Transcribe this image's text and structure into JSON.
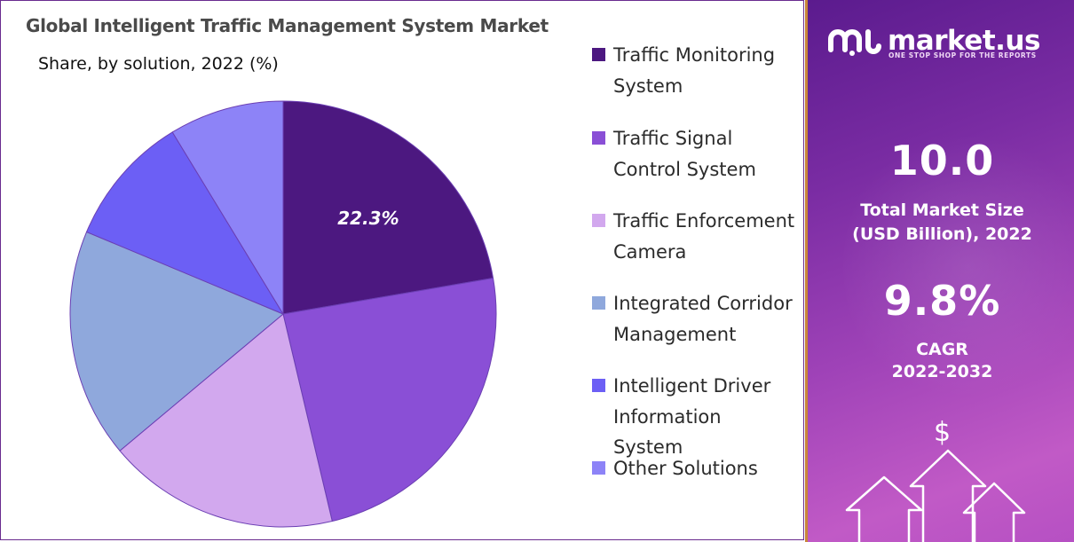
{
  "chart_data": {
    "type": "pie",
    "title": "Global Intelligent Traffic Management System Market",
    "subtitle": "Share, by solution, 2022 (%)",
    "series": [
      {
        "name": "Traffic Monitoring System",
        "value": 22.3,
        "color": "#4c1880",
        "label": "22.3%"
      },
      {
        "name": "Traffic Signal Control System",
        "value": 24.0,
        "color": "#8a4fd6",
        "label": ""
      },
      {
        "name": "Traffic Enforcement Camera",
        "value": 17.6,
        "color": "#d2a8ee",
        "label": ""
      },
      {
        "name": "Integrated Corridor Management",
        "value": 17.4,
        "color": "#8fa8dc",
        "label": ""
      },
      {
        "name": "Intelligent Driver Information System",
        "value": 10.0,
        "color": "#6c5ff5",
        "label": ""
      },
      {
        "name": "Other Solutions",
        "value": 8.7,
        "color": "#8d83f7",
        "label": ""
      }
    ],
    "legend_position": "right"
  },
  "legend": [
    {
      "label": "Traffic Monitoring System",
      "color": "#4c1880"
    },
    {
      "label": "Traffic Signal Control System",
      "color": "#8a4fd6"
    },
    {
      "label": "Traffic Enforcement Camera",
      "color": "#d2a8ee"
    },
    {
      "label": "Integrated Corridor Management",
      "color": "#8fa8dc"
    },
    {
      "label": "Intelligent Driver Information System",
      "color": "#6c5ff5"
    },
    {
      "label": "Other Solutions",
      "color": "#8d83f7"
    }
  ],
  "side_panel": {
    "brand": "market.us",
    "tagline": "ONE STOP SHOP FOR THE REPORTS",
    "market_size_value": "10.0",
    "market_size_label_1": "Total Market Size",
    "market_size_label_2": "(USD Billion), 2022",
    "cagr_value": "9.8%",
    "cagr_label_1": "CAGR",
    "cagr_label_2": "2022-2032",
    "dollar_icon": "$"
  },
  "colors": {
    "panel_start": "#5b1b8e",
    "panel_end": "#c15ac6",
    "frame_border": "#6a2c8f"
  }
}
